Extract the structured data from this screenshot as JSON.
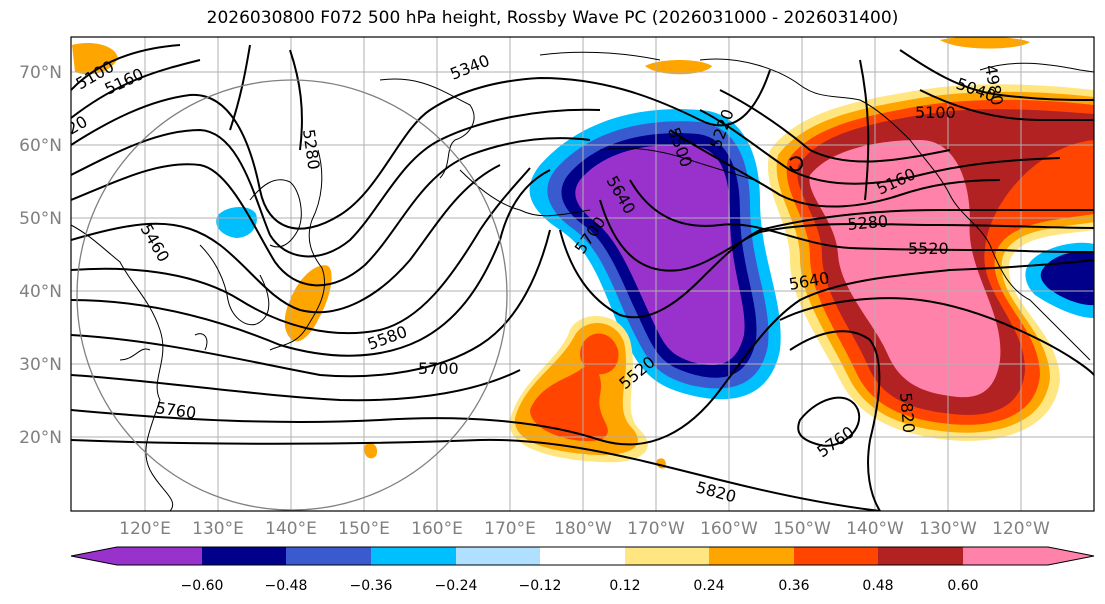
{
  "title": "2026030800 F072 500 hPa height, Rossby Wave PC (2026031000 - 2026031400)",
  "lat_labels": [
    "70°N",
    "60°N",
    "50°N",
    "40°N",
    "30°N",
    "20°N"
  ],
  "lon_labels": [
    "120°E",
    "130°E",
    "140°E",
    "150°E",
    "160°E",
    "170°E",
    "180°W",
    "170°W",
    "160°W",
    "150°W",
    "140°W",
    "130°W",
    "120°W"
  ],
  "contour_labels": [
    "5100",
    "5160",
    "20",
    "5340",
    "5280",
    "5460",
    "5580",
    "5700",
    "5760",
    "5640",
    "5700",
    "5500",
    "5520",
    "5820",
    "5820",
    "5760",
    "5640",
    "5520",
    "5280",
    "5160",
    "5100",
    "5040",
    "4980",
    "5220",
    "5520"
  ],
  "colorbar": {
    "ticks": [
      "−0.60",
      "−0.48",
      "−0.36",
      "−0.24",
      "−0.12",
      "0.12",
      "0.24",
      "0.36",
      "0.48",
      "0.60"
    ],
    "colors": [
      "#9932cc",
      "#00008b",
      "#3a5bd0",
      "#00bfff",
      "#b0e0ff",
      "#ffffff",
      "#ffe680",
      "#ffa500",
      "#ff4500",
      "#b22222",
      "#ff82ab"
    ]
  }
}
